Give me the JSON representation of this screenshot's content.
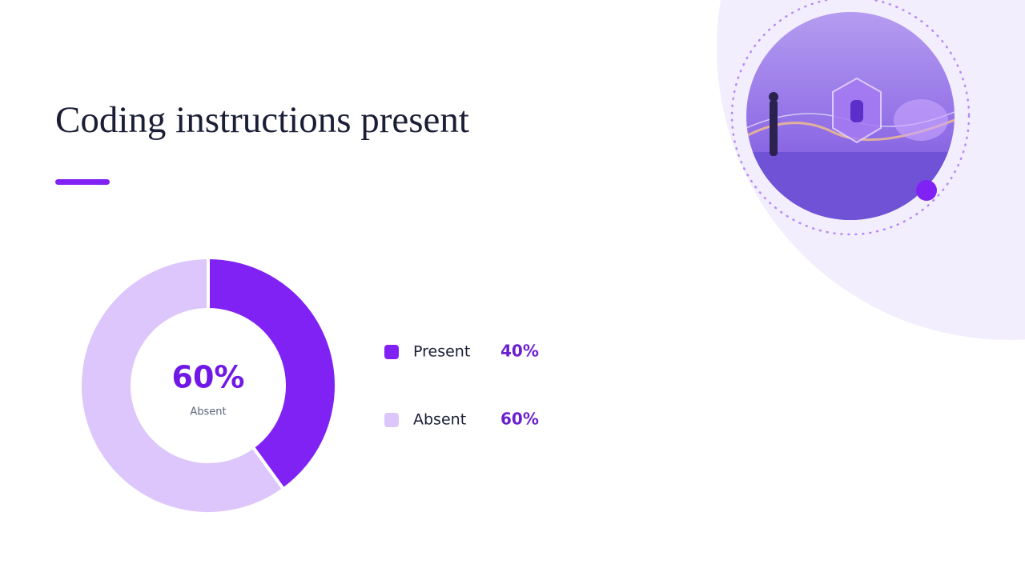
{
  "chart_data": {
    "type": "donut",
    "title": "Coding instructions present",
    "categories": [
      "Present",
      "Absent"
    ],
    "values": [
      40,
      60
    ],
    "value_labels": [
      "40%",
      "60%"
    ],
    "colors": [
      "#8122f5",
      "#dcc6fb"
    ],
    "center_index": 1
  }
}
